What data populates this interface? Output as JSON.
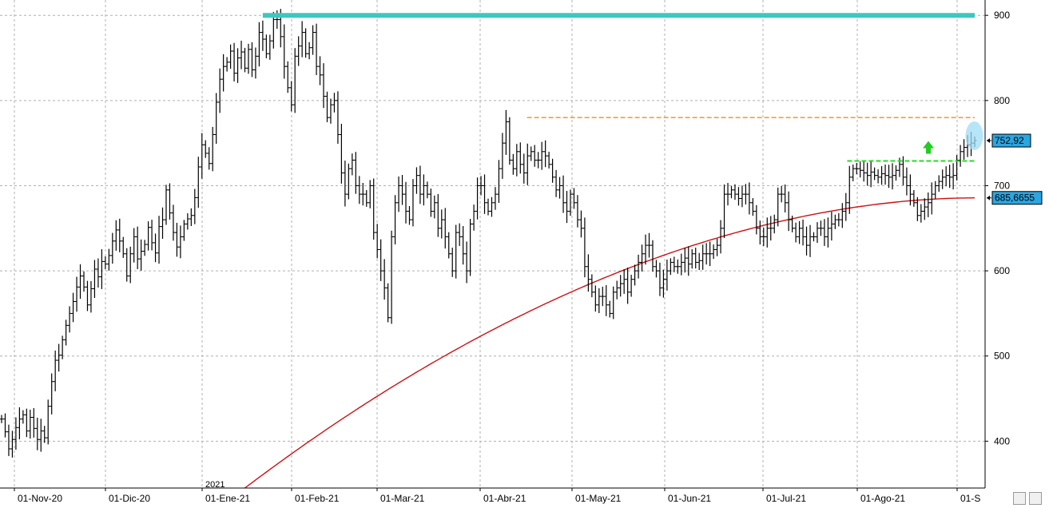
{
  "chart_data": {
    "type": "ohlc",
    "yticks": [
      400,
      500,
      600,
      700,
      800,
      900
    ],
    "ylim": [
      345,
      918
    ],
    "xlabels": [
      "01-Nov-20",
      "01-Dic-20",
      "01-Ene-21",
      "01-Feb-21",
      "01-Mar-21",
      "01-Abr-21",
      "01-May-21",
      "01-Jun-21",
      "01-Jul-21",
      "01-Ago-21",
      "01-S"
    ],
    "year_marker": "2021",
    "price_labels": [
      {
        "text": "752,92",
        "value": 752.92,
        "bg": "#2aa6e0"
      },
      {
        "text": "685,6655",
        "value": 685.6655,
        "bg": "#2aa6e0"
      }
    ],
    "levels": [
      {
        "name": "resistance-max",
        "value": 900,
        "start_bar": 84,
        "end_bar": 313,
        "color": "#3cc8c0",
        "style": "solid-thick"
      },
      {
        "name": "resistance-apr",
        "value": 780,
        "start_bar": 169,
        "end_bar": 313,
        "color": "#ff9a30",
        "style": "dashed"
      },
      {
        "name": "breakout-level",
        "value": 729,
        "start_bar": 277,
        "end_bar": 313,
        "color": "#22dd22",
        "style": "dashed"
      }
    ],
    "moving_average": {
      "color": "#cc1111",
      "points": [
        [
          72,
          346
        ],
        [
          80,
          370
        ],
        [
          90,
          405
        ],
        [
          100,
          440
        ],
        [
          110,
          467
        ],
        [
          120,
          488
        ],
        [
          130,
          510
        ],
        [
          140,
          533
        ],
        [
          150,
          555
        ],
        [
          160,
          575
        ],
        [
          170,
          595
        ],
        [
          180,
          612
        ],
        [
          190,
          627
        ],
        [
          200,
          638
        ],
        [
          210,
          645
        ],
        [
          220,
          652
        ],
        [
          230,
          659
        ],
        [
          240,
          667
        ],
        [
          250,
          676
        ],
        [
          260,
          684
        ],
        [
          270,
          694
        ],
        [
          280,
          706
        ],
        [
          290,
          720
        ],
        [
          300,
          735
        ],
        [
          310,
          753
        ],
        [
          320,
          770
        ],
        [
          330,
          788
        ],
        [
          340,
          805
        ],
        [
          350,
          820
        ],
        [
          360,
          832
        ],
        [
          370,
          845
        ],
        [
          380,
          858
        ],
        [
          390,
          869
        ],
        [
          400,
          880
        ],
        [
          410,
          890
        ],
        [
          420,
          899
        ],
        [
          430,
          908
        ],
        [
          440,
          915
        ],
        [
          450,
          920
        ],
        [
          460,
          928
        ],
        [
          470,
          938
        ],
        [
          480,
          948
        ],
        [
          490,
          958
        ],
        [
          500,
          968
        ],
        [
          509,
          976
        ]
      ]
    },
    "markers": {
      "arrow_up": {
        "bar": 304,
        "value": 744,
        "color": "#22cc22"
      },
      "highlight": {
        "bar": 317,
        "value": 752.9,
        "color": "#9fdcf5"
      }
    },
    "ohlc_seed": [
      426,
      411,
      391,
      402,
      416,
      426,
      431,
      412,
      428,
      415,
      402,
      412,
      404,
      441,
      470,
      495,
      501,
      519,
      536,
      550,
      564,
      581,
      594,
      581,
      560,
      579,
      602,
      593,
      611,
      608,
      618,
      635,
      648,
      635,
      620,
      594,
      620,
      640,
      614,
      623,
      631,
      651,
      633,
      621,
      652,
      660,
      695,
      668,
      645,
      628,
      640,
      655,
      661,
      665,
      686,
      722,
      748,
      738,
      726,
      760,
      798,
      825,
      840,
      845,
      858,
      832,
      850,
      857,
      838,
      860,
      836,
      852,
      880,
      872,
      855,
      870,
      895,
      895,
      875,
      840,
      815,
      795,
      852,
      864,
      880,
      855,
      862,
      880,
      840,
      830,
      805,
      780,
      795,
      800,
      760,
      715,
      690,
      720,
      730,
      700,
      690,
      690,
      680,
      700,
      645,
      625,
      600,
      580,
      545,
      640,
      680,
      700,
      690,
      670,
      660,
      700,
      712,
      690,
      700,
      690,
      670,
      680,
      650,
      660,
      640,
      620,
      600,
      645,
      640,
      620,
      600,
      655,
      670,
      700,
      700,
      680,
      670,
      680,
      690,
      720,
      750,
      775,
      730,
      720,
      740,
      725,
      715,
      735,
      740,
      730,
      730,
      740,
      735,
      725,
      710,
      695,
      700,
      680,
      670,
      690,
      680,
      660,
      650,
      605,
      590,
      575,
      560,
      570,
      570,
      560,
      550,
      575,
      580,
      585,
      590,
      575,
      590,
      600,
      610,
      620,
      630,
      630,
      605,
      600,
      580,
      590,
      600,
      610,
      605,
      605,
      610,
      615,
      608,
      620,
      610,
      612,
      620,
      620,
      620,
      625,
      630,
      650,
      690,
      690,
      695,
      690,
      685,
      690,
      690,
      680,
      670,
      650,
      640,
      640,
      650,
      650,
      660,
      690,
      690,
      680,
      660,
      650,
      640,
      650,
      640,
      630,
      640,
      640,
      650,
      650,
      640,
      650,
      655,
      660,
      660,
      670,
      680,
      710,
      720,
      720,
      718,
      715,
      712,
      716,
      712,
      710,
      714,
      712,
      710,
      712,
      718,
      725,
      710,
      700,
      690,
      680,
      665,
      670,
      675,
      680,
      690,
      700,
      705,
      710,
      712,
      710,
      712,
      730,
      740,
      745,
      748,
      750,
      752.92
    ]
  }
}
